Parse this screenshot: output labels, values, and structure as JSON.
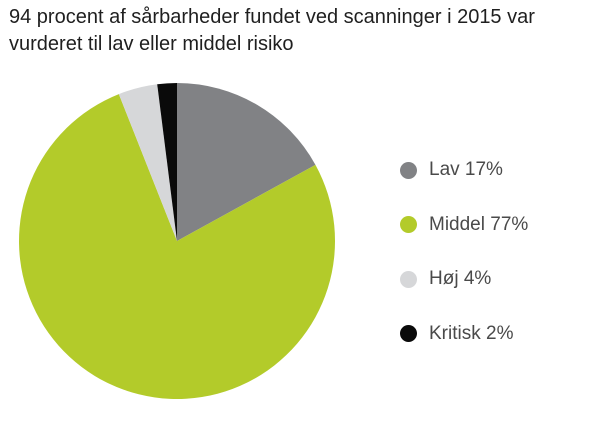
{
  "title": "94 procent af sårbarheder fundet ved scanninger i 2015 var vurderet til lav eller middel risiko",
  "chart_data": {
    "type": "pie",
    "title": "94 procent af sårbarheder fundet ved scanninger i 2015 var vurderet til lav eller middel risiko",
    "start_angle_deg": 0,
    "direction": "clockwise",
    "slices": [
      {
        "label": "Lav 17%",
        "value": 17,
        "color": "#818285"
      },
      {
        "label": "Middel 77%",
        "value": 77,
        "color": "#b3cb2a"
      },
      {
        "label": "Høj 4%",
        "value": 4,
        "color": "#d6d7d9"
      },
      {
        "label": "Kritisk 2%",
        "value": 2,
        "color": "#0a0a0a"
      }
    ],
    "legend_position": "right"
  }
}
